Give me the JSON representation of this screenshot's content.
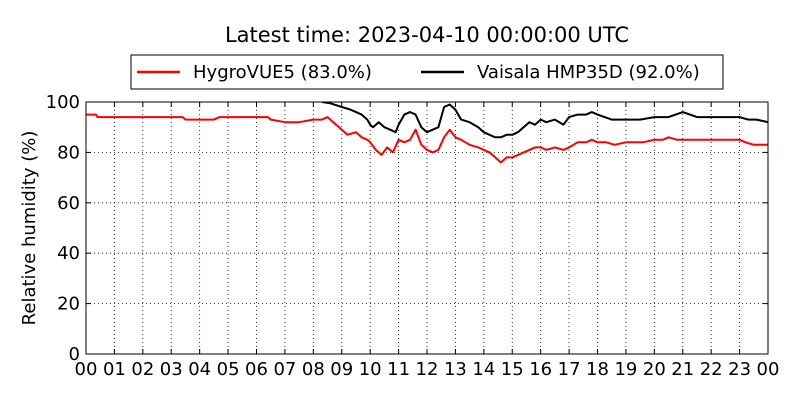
{
  "chart_data": {
    "type": "line",
    "title": "Latest time: 2023-04-10 00:00:00 UTC",
    "xlabel": "",
    "ylabel": "Relative humidity (%)",
    "xlim": [
      0,
      24
    ],
    "ylim": [
      0,
      100
    ],
    "grid": true,
    "legend_position": "top",
    "categories": [
      "00",
      "01",
      "02",
      "03",
      "04",
      "05",
      "06",
      "07",
      "08",
      "09",
      "10",
      "11",
      "12",
      "13",
      "14",
      "15",
      "16",
      "17",
      "18",
      "19",
      "20",
      "21",
      "22",
      "23",
      "00"
    ],
    "y_ticks": [
      0,
      20,
      40,
      60,
      80,
      100
    ],
    "series": [
      {
        "name": "HygroVUE5 (83.0%)",
        "color": "#ff0000",
        "x": [
          0,
          0.35,
          0.4,
          1,
          2,
          3,
          3.4,
          3.5,
          4,
          4.5,
          4.7,
          5,
          6,
          6.4,
          6.5,
          7,
          7.5,
          8,
          8.3,
          8.5,
          8.7,
          9,
          9.2,
          9.5,
          9.7,
          9.9,
          10,
          10.2,
          10.4,
          10.6,
          10.8,
          11,
          11.2,
          11.4,
          11.6,
          11.8,
          12,
          12.2,
          12.4,
          12.6,
          12.8,
          13,
          13.2,
          13.5,
          13.8,
          14,
          14.2,
          14.4,
          14.6,
          14.8,
          15,
          15.2,
          15.4,
          15.6,
          15.8,
          16,
          16.2,
          16.5,
          16.8,
          17,
          17.3,
          17.6,
          17.8,
          18,
          18.3,
          18.6,
          19,
          19.3,
          19.6,
          20,
          20.3,
          20.5,
          20.8,
          21,
          21.5,
          22,
          22.5,
          23,
          23.2,
          23.5,
          24
        ],
        "y": [
          95,
          95,
          94,
          94,
          94,
          94,
          94,
          93,
          93,
          93,
          94,
          94,
          94,
          94,
          93,
          92,
          92,
          93,
          93,
          94,
          92,
          89,
          87,
          88,
          86,
          85,
          84,
          81,
          79,
          82,
          80,
          85,
          84,
          85,
          89,
          83,
          81,
          80,
          81,
          86,
          89,
          86,
          85,
          83,
          82,
          81,
          80,
          78,
          76,
          78,
          78,
          79,
          80,
          81,
          82,
          82,
          81,
          82,
          81,
          82,
          84,
          84,
          85,
          84,
          84,
          83,
          84,
          84,
          84,
          85,
          85,
          86,
          85,
          85,
          85,
          85,
          85,
          85,
          84,
          83,
          83
        ]
      },
      {
        "name": "Vaisala HMP35D (92.0%)",
        "color": "#000000",
        "x": [
          8.3,
          8.6,
          9,
          9.3,
          9.5,
          9.7,
          9.9,
          10,
          10.1,
          10.3,
          10.5,
          10.7,
          10.9,
          11,
          11.2,
          11.4,
          11.6,
          11.8,
          12,
          12.2,
          12.4,
          12.6,
          12.8,
          13,
          13.2,
          13.5,
          13.8,
          14,
          14.2,
          14.4,
          14.6,
          14.8,
          15,
          15.2,
          15.4,
          15.6,
          15.8,
          16,
          16.2,
          16.5,
          16.8,
          17,
          17.3,
          17.6,
          17.8,
          18,
          18.5,
          19,
          19.5,
          20,
          20.5,
          21,
          21.5,
          22,
          22.5,
          23,
          23.3,
          23.6,
          24
        ],
        "y": [
          100,
          99.5,
          98,
          97,
          96,
          95,
          93,
          91,
          90,
          92,
          90,
          89,
          88,
          91,
          95,
          96,
          95,
          90,
          88,
          89,
          90,
          98,
          99,
          97,
          93,
          92,
          90,
          88,
          87,
          86,
          86,
          87,
          87,
          88,
          90,
          92,
          91,
          93,
          92,
          93,
          91,
          94,
          95,
          95,
          96,
          95,
          93,
          93,
          93,
          94,
          94,
          96,
          94,
          94,
          94,
          94,
          93,
          93,
          92
        ]
      }
    ]
  }
}
